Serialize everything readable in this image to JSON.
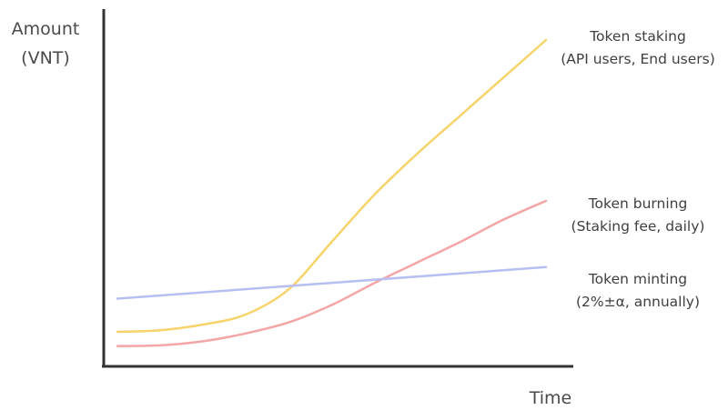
{
  "chart_data": {
    "type": "line",
    "xlabel": "Time",
    "ylabel": [
      "Amount",
      "(VNT)"
    ],
    "x_ticks_shown": false,
    "y_ticks_shown": false,
    "grid": false,
    "legend": "inline-right",
    "xlim": [
      0,
      10
    ],
    "ylim": [
      0,
      10
    ],
    "series": [
      {
        "key": "staking",
        "label_lines": [
          "Token staking",
          "(API users, End users)"
        ],
        "color": "#f7d36b",
        "x": [
          0,
          1,
          2,
          3,
          4,
          5,
          6,
          7,
          8,
          9,
          10
        ],
        "y": [
          0.75,
          0.8,
          0.98,
          1.3,
          2.1,
          3.6,
          5.1,
          6.4,
          7.6,
          8.8,
          10.0
        ]
      },
      {
        "key": "burning",
        "label_lines": [
          "Token burning",
          "(Staking fee, daily)"
        ],
        "color": "#f4a6a6",
        "x": [
          0,
          1,
          2,
          3,
          4,
          5,
          6,
          7,
          8,
          9,
          10
        ],
        "y": [
          0.3,
          0.32,
          0.45,
          0.7,
          1.05,
          1.6,
          2.3,
          2.95,
          3.6,
          4.3,
          4.9
        ]
      },
      {
        "key": "minting",
        "label_lines": [
          "Token minting",
          "(2%±α, annually)"
        ],
        "color": "#b7bff2",
        "x": [
          0,
          10
        ],
        "y": [
          1.8,
          2.8
        ]
      }
    ]
  }
}
